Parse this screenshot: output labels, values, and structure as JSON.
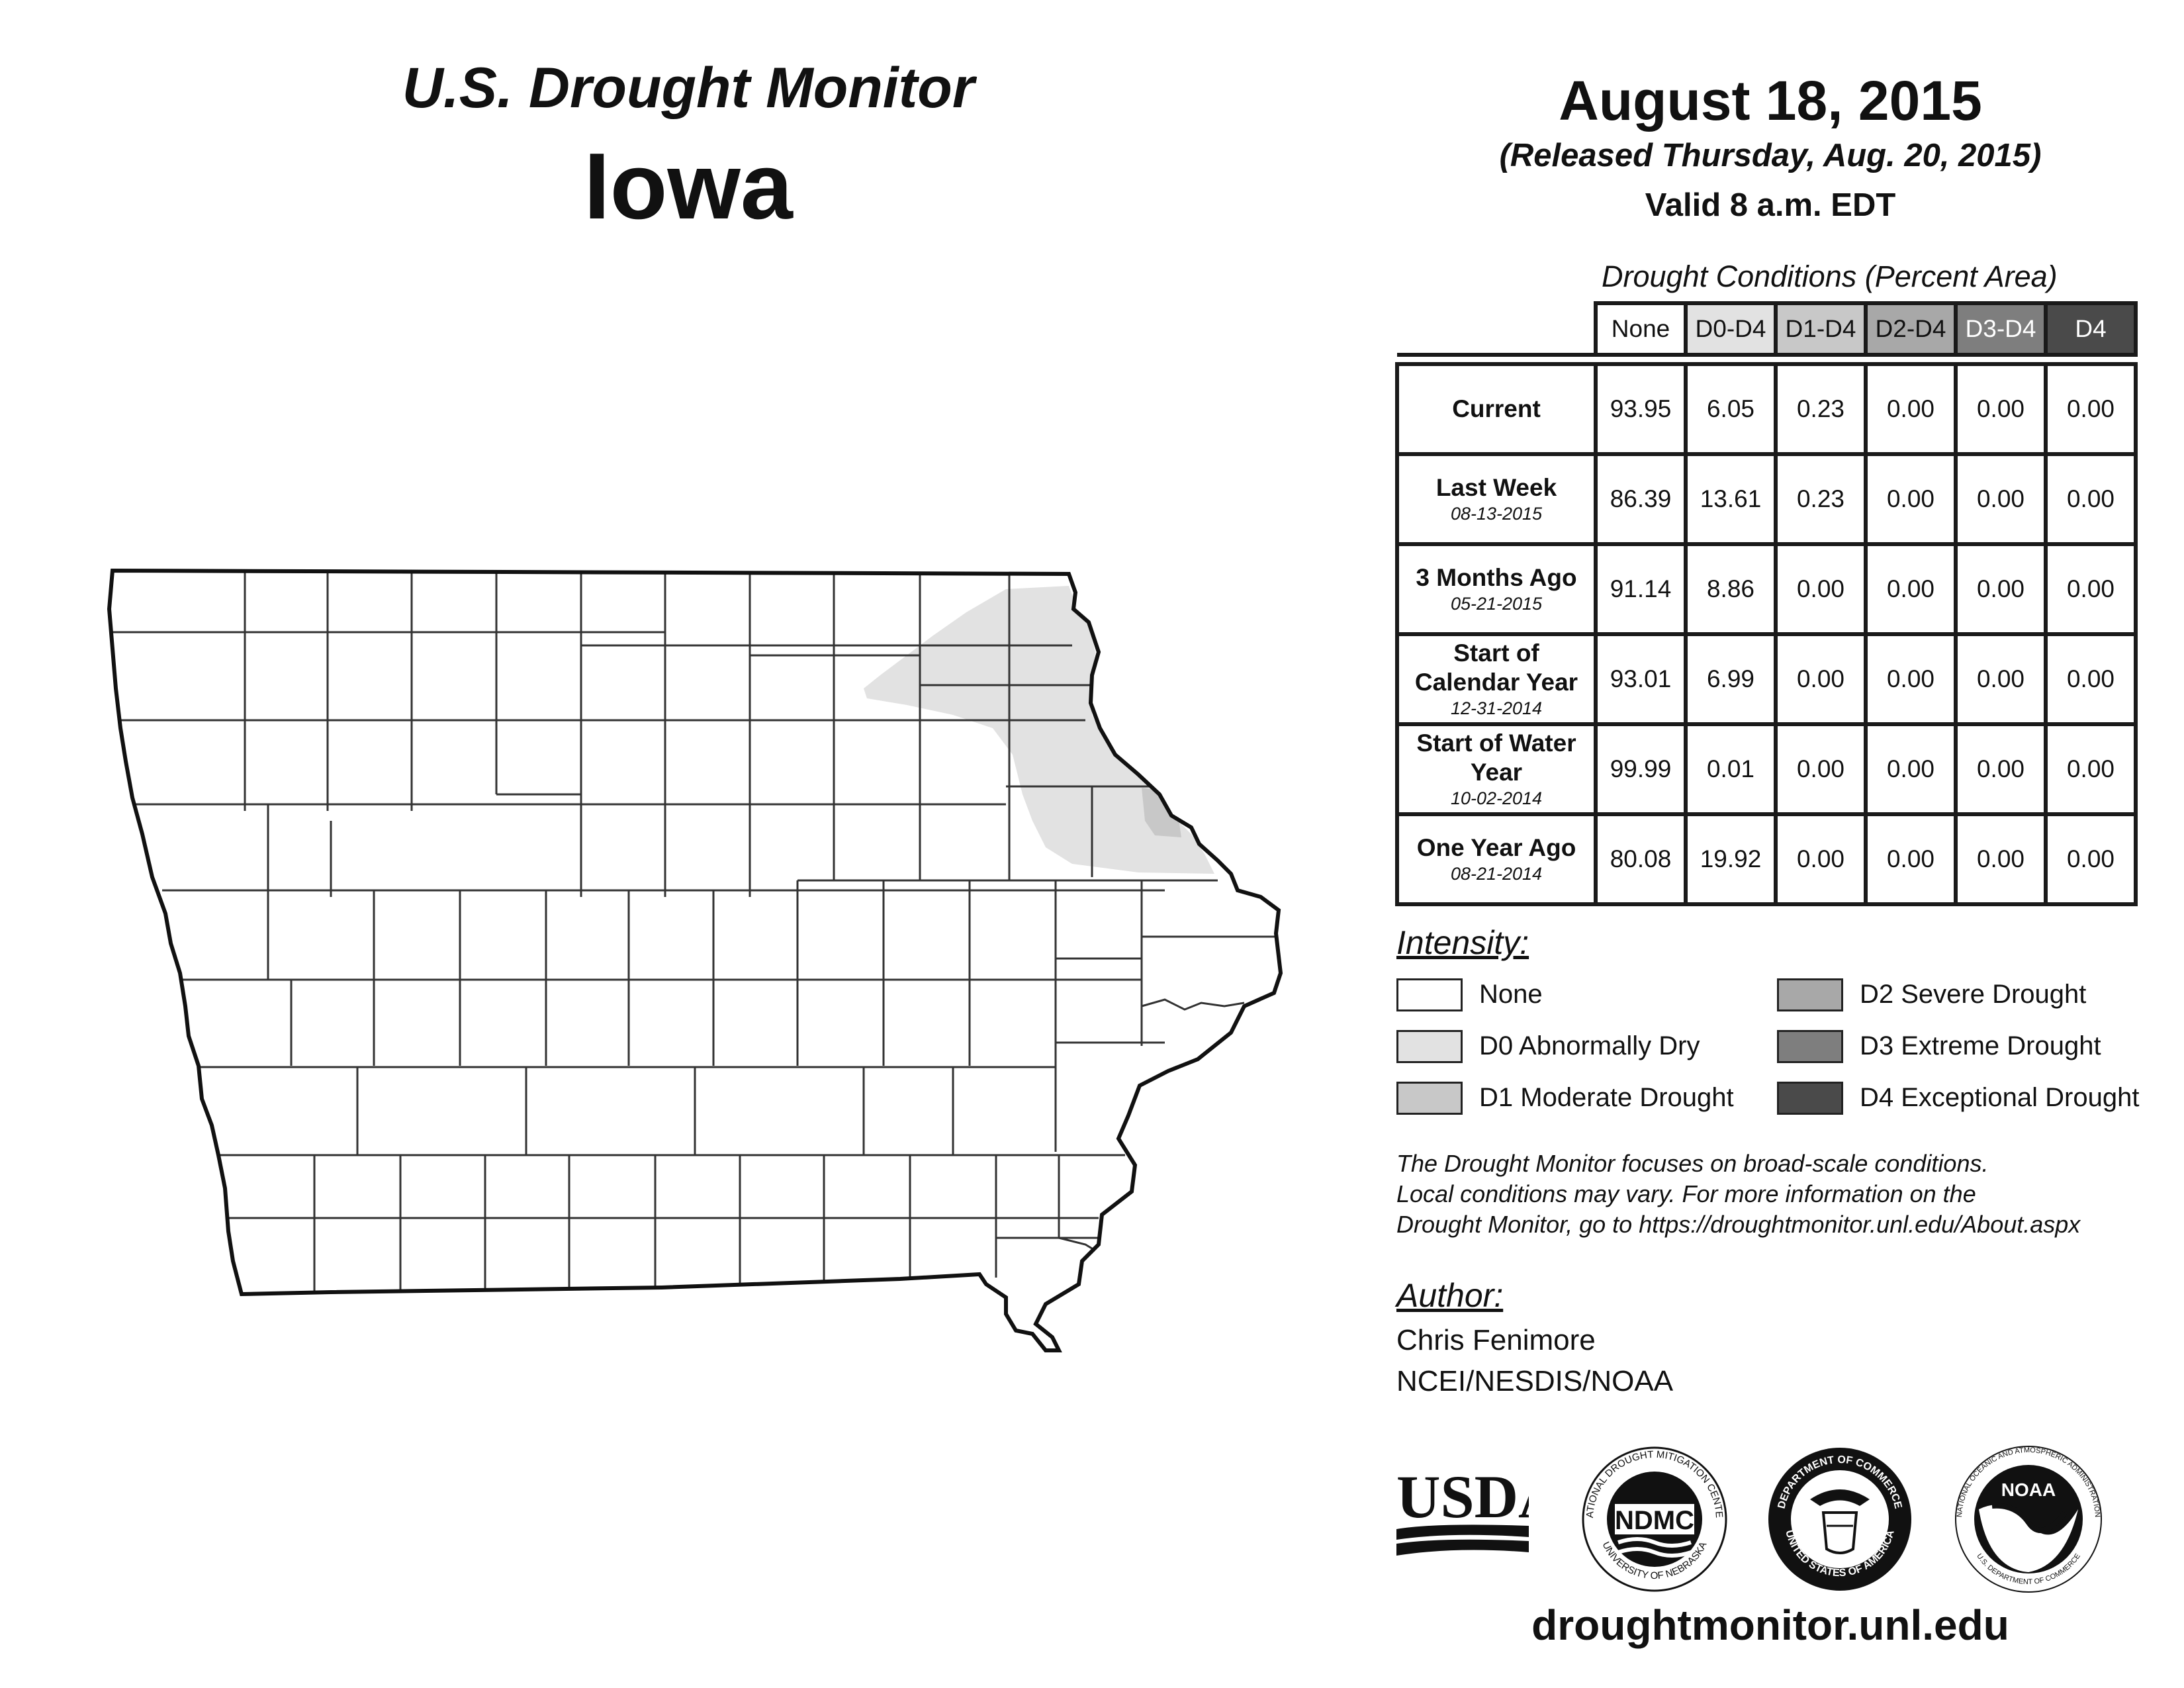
{
  "header": {
    "title": "U.S. Drought Monitor",
    "state": "Iowa"
  },
  "dates": {
    "map_date": "August 18, 2015",
    "released": "(Released Thursday, Aug. 20, 2015)",
    "valid": "Valid 8 a.m. EDT"
  },
  "table": {
    "caption": "Drought Conditions (Percent Area)",
    "columns": [
      "None",
      "D0-D4",
      "D1-D4",
      "D2-D4",
      "D3-D4",
      "D4"
    ],
    "rows": [
      {
        "label": "Current",
        "sub": "",
        "values": [
          "93.95",
          "6.05",
          "0.23",
          "0.00",
          "0.00",
          "0.00"
        ]
      },
      {
        "label": "Last Week",
        "sub": "08-13-2015",
        "values": [
          "86.39",
          "13.61",
          "0.23",
          "0.00",
          "0.00",
          "0.00"
        ]
      },
      {
        "label": "3 Months Ago",
        "sub": "05-21-2015",
        "values": [
          "91.14",
          "8.86",
          "0.00",
          "0.00",
          "0.00",
          "0.00"
        ]
      },
      {
        "label": "Start of Calendar Year",
        "sub": "12-31-2014",
        "values": [
          "93.01",
          "6.99",
          "0.00",
          "0.00",
          "0.00",
          "0.00"
        ]
      },
      {
        "label": "Start of Water Year",
        "sub": "10-02-2014",
        "values": [
          "99.99",
          "0.01",
          "0.00",
          "0.00",
          "0.00",
          "0.00"
        ]
      },
      {
        "label": "One Year Ago",
        "sub": "08-21-2014",
        "values": [
          "80.08",
          "19.92",
          "0.00",
          "0.00",
          "0.00",
          "0.00"
        ]
      }
    ]
  },
  "legend": {
    "title": "Intensity:",
    "items": [
      {
        "label": "None",
        "color": "#ffffff"
      },
      {
        "label": "D0 Abnormally Dry",
        "color": "#e2e2e2"
      },
      {
        "label": "D1 Moderate Drought",
        "color": "#c8c8c8"
      },
      {
        "label": "D2 Severe Drought",
        "color": "#a8a8a8"
      },
      {
        "label": "D3 Extreme Drought",
        "color": "#7e7e7e"
      },
      {
        "label": "D4 Exceptional Drought",
        "color": "#4a4a4a"
      }
    ]
  },
  "note": {
    "line1": "The Drought Monitor focuses on broad-scale conditions.",
    "line2": "Local conditions may vary. For more information on the",
    "line3": "Drought Monitor, go to https://droughtmonitor.unl.edu/About.aspx"
  },
  "author": {
    "title": "Author:",
    "name": "Chris Fenimore",
    "org": "NCEI/NESDIS/NOAA"
  },
  "logos": {
    "usda": "USDA",
    "ndmc": "NDMC",
    "ndmc_ring_top": "NATIONAL DROUGHT MITIGATION CENTER",
    "ndmc_ring_bottom": "UNIVERSITY OF NEBRASKA",
    "doc_ring_top": "DEPARTMENT OF COMMERCE",
    "doc_ring_bottom": "UNITED STATES OF AMERICA",
    "noaa": "NOAA",
    "noaa_ring_top": "NATIONAL OCEANIC AND ATMOSPHERIC ADMINISTRATION",
    "noaa_ring_bottom": "U.S. DEPARTMENT OF COMMERCE"
  },
  "footer": {
    "url": "droughtmonitor.unl.edu"
  }
}
